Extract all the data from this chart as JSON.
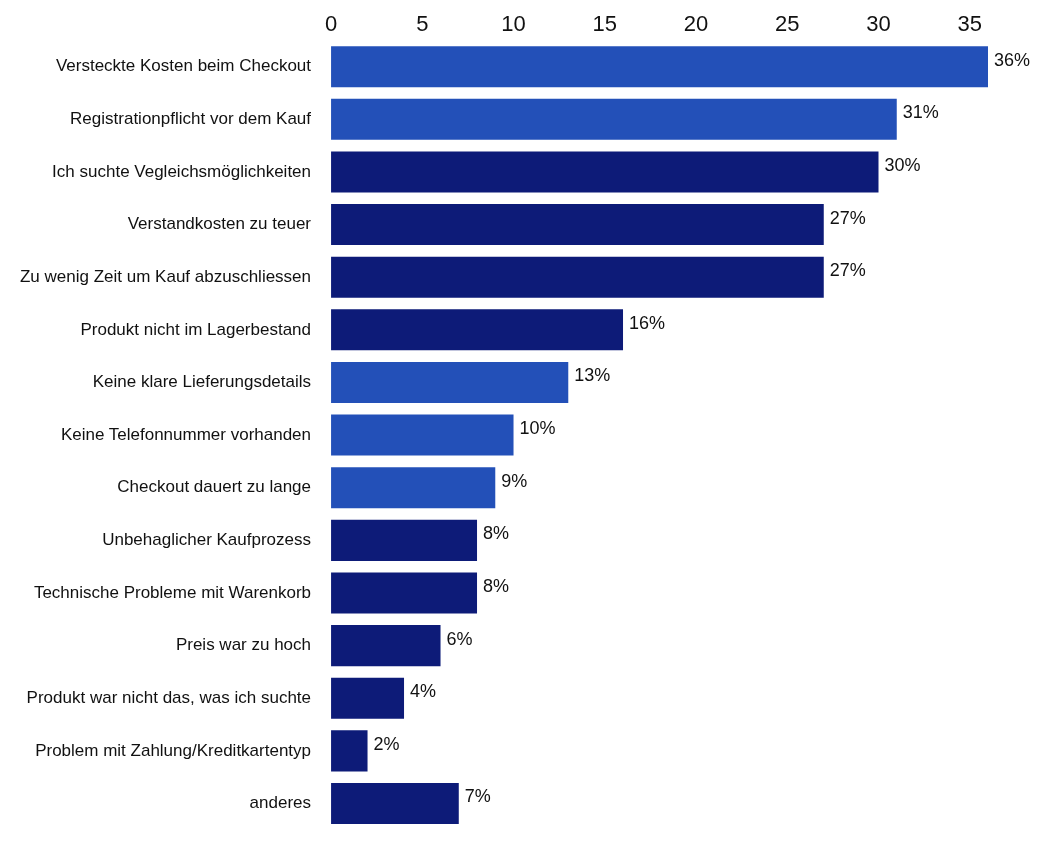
{
  "chart_data": {
    "type": "bar",
    "orientation": "horizontal",
    "categories": [
      "Versteckte Kosten beim Checkout",
      "Registrationpflicht vor dem Kauf",
      "Ich suchte Vegleichsmöglichkeiten",
      "Verstandkosten zu teuer",
      "Zu wenig Zeit um Kauf abzuschliessen",
      "Produkt nicht im Lagerbestand",
      "Keine klare Lieferungsdetails",
      "Keine Telefonnummer vorhanden",
      "Checkout dauert zu lange",
      "Unbehaglicher Kaufprozess",
      "Technische Probleme mit Warenkorb",
      "Preis war zu hoch",
      "Produkt war nicht das, was ich suchte",
      "Problem mit Zahlung/Kreditkartentyp",
      "anderes"
    ],
    "series": [
      {
        "color": "#2350b8",
        "values": [
          36,
          31,
          null,
          null,
          null,
          null,
          13,
          10,
          9,
          null,
          null,
          null,
          null,
          null,
          null
        ],
        "value_labels": [
          "36%",
          "31%",
          null,
          null,
          null,
          null,
          "13%",
          "10%",
          "9%",
          null,
          null,
          null,
          null,
          null,
          null
        ]
      },
      {
        "color": "#0d1b78",
        "values": [
          null,
          null,
          30,
          27,
          27,
          16,
          null,
          null,
          null,
          8,
          8,
          6,
          4,
          2,
          7
        ],
        "value_labels": [
          null,
          null,
          "30%",
          "27%",
          "27%",
          "16%",
          null,
          null,
          null,
          "8%",
          "8%",
          "6%",
          "4%",
          "2%",
          "7%"
        ]
      }
    ],
    "xlim": [
      0,
      36
    ],
    "xticks": [
      0,
      5,
      10,
      15,
      20,
      25,
      30,
      35
    ],
    "grid": false,
    "legend": false
  }
}
